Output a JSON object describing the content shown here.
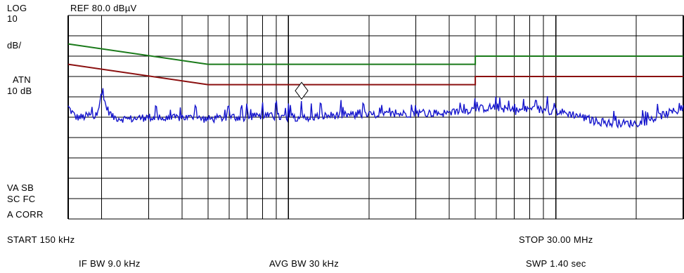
{
  "header": {
    "log": "LOG",
    "log_value": "10",
    "db_per_div": "dB/",
    "ref": "REF 80.0 dBµV",
    "atn": "ATN",
    "atn_value": "10 dB"
  },
  "side": {
    "vasb": "VA SB",
    "scfc": "SC FC",
    "corr": "A CORR"
  },
  "footer": {
    "start": "START 150 kHz",
    "stop": "STOP 30.00 MHz",
    "ifbw": "IF BW 9.0 kHz",
    "avgbw": "AVG BW 30 kHz",
    "swp": "SWP 1.40 sec"
  },
  "chart_data": {
    "type": "line",
    "x_scale": "log",
    "x_unit": "MHz",
    "xlim": [
      0.15,
      30
    ],
    "ylim": [
      -20,
      80
    ],
    "y_unit": "dBµV",
    "grid": true,
    "x_gridlines": [
      0.15,
      0.2,
      0.3,
      0.4,
      0.5,
      0.6,
      0.7,
      0.8,
      0.9,
      1,
      2,
      3,
      4,
      5,
      6,
      7,
      8,
      9,
      10,
      20,
      30
    ],
    "colors": {
      "qp_limit": "#1a7a1a",
      "avg_limit": "#8b1010",
      "trace": "#1515cc"
    },
    "series": [
      {
        "color_key": "qp_limit",
        "points": [
          [
            0.15,
            66
          ],
          [
            0.5,
            56
          ],
          [
            5,
            56
          ],
          [
            5,
            60
          ],
          [
            30,
            60
          ]
        ]
      },
      {
        "color_key": "avg_limit",
        "points": [
          [
            0.15,
            56
          ],
          [
            0.5,
            46
          ],
          [
            5,
            46
          ],
          [
            5,
            50
          ],
          [
            30,
            50
          ]
        ]
      },
      {
        "color_key": "trace",
        "noisy": true,
        "points": [
          [
            0.15,
            35
          ],
          [
            0.16,
            30
          ],
          [
            0.17,
            30
          ],
          [
            0.18,
            31
          ],
          [
            0.19,
            30
          ],
          [
            0.2,
            42
          ],
          [
            0.21,
            34
          ],
          [
            0.22,
            30
          ],
          [
            0.25,
            29
          ],
          [
            0.3,
            30
          ],
          [
            0.35,
            29
          ],
          [
            0.4,
            30
          ],
          [
            0.5,
            29
          ],
          [
            0.6,
            30
          ],
          [
            0.7,
            30
          ],
          [
            0.8,
            31
          ],
          [
            0.9,
            30
          ],
          [
            1.0,
            30
          ],
          [
            1.2,
            30
          ],
          [
            1.5,
            31
          ],
          [
            2.0,
            31
          ],
          [
            3.0,
            32
          ],
          [
            4.0,
            32
          ],
          [
            5.0,
            34
          ],
          [
            6.0,
            35
          ],
          [
            7.0,
            33
          ],
          [
            8.0,
            34
          ],
          [
            10.0,
            33
          ],
          [
            12.0,
            31
          ],
          [
            14.0,
            28
          ],
          [
            16.0,
            27
          ],
          [
            18.0,
            27
          ],
          [
            20.0,
            27
          ],
          [
            22.0,
            28
          ],
          [
            25.0,
            31
          ],
          [
            28.0,
            33
          ],
          [
            30.0,
            34
          ]
        ],
        "spikes": [
          [
            0.2,
            42
          ],
          [
            0.32,
            36
          ],
          [
            0.45,
            36
          ],
          [
            0.6,
            37
          ],
          [
            0.7,
            37
          ],
          [
            0.8,
            38
          ],
          [
            0.9,
            38
          ],
          [
            1.0,
            38
          ],
          [
            1.12,
            38
          ],
          [
            1.22,
            38
          ],
          [
            1.32,
            38
          ],
          [
            1.6,
            36
          ],
          [
            2.2,
            35
          ],
          [
            3.2,
            34
          ],
          [
            4.1,
            34
          ]
        ]
      }
    ],
    "marker": {
      "x": 1.12,
      "y": 43
    }
  }
}
